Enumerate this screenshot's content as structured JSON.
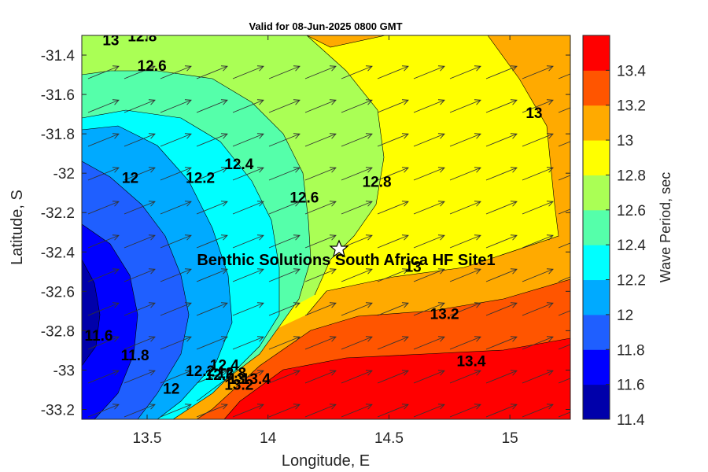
{
  "title": "Valid for 08-Jun-2025 0800 GMT",
  "xlabel": "Longitude, E",
  "ylabel": "Latitude, S",
  "xticks": [
    "13.5",
    "14",
    "14.5",
    "15"
  ],
  "yticks": [
    "-31.4",
    "-31.6",
    "-31.8",
    "-32",
    "-32.2",
    "-32.4",
    "-32.6",
    "-32.8",
    "-33",
    "-33.2"
  ],
  "colorbar": {
    "label": "Wave Period, sec",
    "ticks": [
      "11.4",
      "11.6",
      "11.8",
      "12",
      "12.2",
      "12.4",
      "12.6",
      "12.8",
      "13",
      "13.2",
      "13.4"
    ],
    "band_colors": [
      "#0000aa",
      "#0000ff",
      "#1f5fff",
      "#00aaff",
      "#00ffff",
      "#55ffaa",
      "#aaff55",
      "#ffff00",
      "#ffaa00",
      "#ff5500",
      "#ff0000"
    ]
  },
  "site": {
    "label": "Benthic Solutions South Africa HF Site1",
    "lon": 14.3,
    "lat": -32.35
  },
  "contour_labels": [
    {
      "text": "13",
      "lon": 13.35,
      "lat": -31.35
    },
    {
      "text": "12.8",
      "lon": 13.48,
      "lat": -31.33
    },
    {
      "text": "12.6",
      "lon": 13.52,
      "lat": -31.48
    },
    {
      "text": "13",
      "lon": 15.1,
      "lat": -31.72
    },
    {
      "text": "12.4",
      "lon": 13.88,
      "lat": -31.98
    },
    {
      "text": "12.2",
      "lon": 13.72,
      "lat": -32.05
    },
    {
      "text": "12",
      "lon": 13.43,
      "lat": -32.05
    },
    {
      "text": "12.6",
      "lon": 14.15,
      "lat": -32.15
    },
    {
      "text": "12.8",
      "lon": 14.45,
      "lat": -32.07
    },
    {
      "text": "13",
      "lon": 14.6,
      "lat": -32.5
    },
    {
      "text": "13.2",
      "lon": 14.73,
      "lat": -32.74
    },
    {
      "text": "13.4",
      "lon": 14.84,
      "lat": -32.98
    },
    {
      "text": "11.6",
      "lon": 13.3,
      "lat": -32.85
    },
    {
      "text": "11.8",
      "lon": 13.45,
      "lat": -32.95
    },
    {
      "text": "12",
      "lon": 13.6,
      "lat": -33.12
    },
    {
      "text": "12.2",
      "lon": 13.72,
      "lat": -33.03
    },
    {
      "text": "12.4",
      "lon": 13.82,
      "lat": -33.0
    },
    {
      "text": "12.6",
      "lon": 13.8,
      "lat": -33.05
    },
    {
      "text": "12.8",
      "lon": 13.85,
      "lat": -33.04
    },
    {
      "text": "13",
      "lon": 13.87,
      "lat": -33.07
    },
    {
      "text": "13.2",
      "lon": 13.88,
      "lat": -33.1
    },
    {
      "text": "13.4",
      "lon": 13.95,
      "lat": -33.07
    }
  ],
  "arrows": {
    "direction": "north-east"
  }
}
